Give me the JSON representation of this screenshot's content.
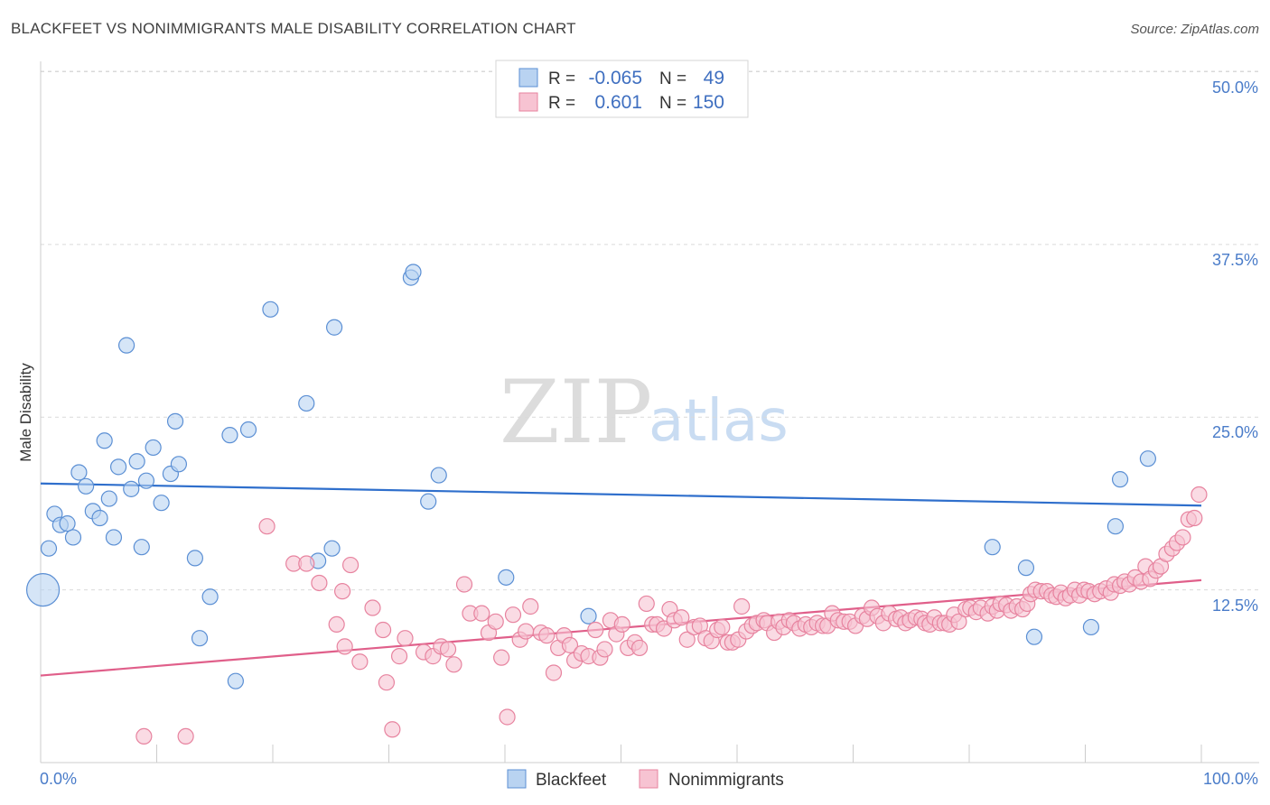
{
  "title": "BLACKFEET VS NONIMMIGRANTS MALE DISABILITY CORRELATION CHART",
  "source": "Source: ZipAtlas.com",
  "watermark": {
    "part1": "ZIP",
    "part2": "atlas"
  },
  "colors": {
    "blackfeet_fill": "#b9d3f1",
    "blackfeet_stroke": "#5b8fd4",
    "blackfeet_line": "#2f6fcc",
    "nonimm_fill": "#f7c3d2",
    "nonimm_stroke": "#e7839f",
    "nonimm_line": "#e05f8a",
    "grid": "#d9d9d9",
    "tick_text": "#4a7cc9"
  },
  "legend": {
    "rows": [
      {
        "r_label": "R =",
        "r_value": "-0.065",
        "n_label": "N =",
        "n_value": "49"
      },
      {
        "r_label": "R =",
        "r_value": "0.601",
        "n_label": "N =",
        "n_value": "150"
      }
    ]
  },
  "bottom_legend": [
    "Blackfeet",
    "Nonimmigrants"
  ],
  "chart_data": {
    "type": "scatter",
    "ylabel": "Male Disability",
    "x_tick_labels": [
      "0.0%",
      "100.0%"
    ],
    "y_tick_labels": [
      "12.5%",
      "25.0%",
      "37.5%",
      "50.0%"
    ],
    "xlim": [
      0,
      100
    ],
    "ylim": [
      0,
      51.6
    ],
    "y_ticks": [
      12.5,
      25.0,
      37.5,
      50.0
    ],
    "grid": true,
    "series": [
      {
        "name": "Blackfeet",
        "trend": {
          "x": [
            0,
            100
          ],
          "y": [
            20.2,
            18.6
          ]
        },
        "points": [
          [
            0.2,
            12.5
          ],
          [
            0.7,
            15.5
          ],
          [
            1.2,
            18.0
          ],
          [
            1.7,
            17.2
          ],
          [
            2.3,
            17.3
          ],
          [
            2.8,
            16.3
          ],
          [
            3.3,
            21.0
          ],
          [
            3.9,
            20.0
          ],
          [
            4.5,
            18.2
          ],
          [
            5.1,
            17.7
          ],
          [
            5.5,
            23.3
          ],
          [
            5.9,
            19.1
          ],
          [
            6.3,
            16.3
          ],
          [
            6.7,
            21.4
          ],
          [
            7.4,
            30.2
          ],
          [
            7.8,
            19.8
          ],
          [
            8.3,
            21.8
          ],
          [
            8.7,
            15.6
          ],
          [
            9.1,
            20.4
          ],
          [
            9.7,
            22.8
          ],
          [
            10.4,
            18.8
          ],
          [
            11.2,
            20.9
          ],
          [
            11.6,
            24.7
          ],
          [
            11.9,
            21.6
          ],
          [
            13.3,
            14.8
          ],
          [
            13.7,
            9.0
          ],
          [
            14.6,
            12.0
          ],
          [
            16.3,
            23.7
          ],
          [
            16.8,
            5.9
          ],
          [
            17.9,
            24.1
          ],
          [
            19.8,
            32.8
          ],
          [
            22.9,
            26.0
          ],
          [
            23.9,
            14.6
          ],
          [
            25.1,
            15.5
          ],
          [
            25.3,
            31.5
          ],
          [
            31.9,
            35.1
          ],
          [
            32.1,
            35.5
          ],
          [
            33.4,
            18.9
          ],
          [
            34.3,
            20.8
          ],
          [
            40.1,
            13.4
          ],
          [
            47.2,
            10.6
          ],
          [
            82.0,
            15.6
          ],
          [
            84.9,
            14.1
          ],
          [
            85.6,
            9.1
          ],
          [
            90.5,
            9.8
          ],
          [
            92.6,
            17.1
          ],
          [
            93.0,
            20.5
          ],
          [
            95.4,
            22.0
          ],
          [
            49.8,
            50.1
          ]
        ]
      },
      {
        "name": "Nonimmigrants",
        "trend": {
          "x": [
            0,
            100
          ],
          "y": [
            6.3,
            13.2
          ]
        },
        "points": [
          [
            8.9,
            1.9
          ],
          [
            12.5,
            1.9
          ],
          [
            19.5,
            17.1
          ],
          [
            21.8,
            14.4
          ],
          [
            22.9,
            14.4
          ],
          [
            24.0,
            13.0
          ],
          [
            25.5,
            10.0
          ],
          [
            26.2,
            8.4
          ],
          [
            26.0,
            12.4
          ],
          [
            26.7,
            14.3
          ],
          [
            27.5,
            7.3
          ],
          [
            28.6,
            11.2
          ],
          [
            29.5,
            9.6
          ],
          [
            29.8,
            5.8
          ],
          [
            30.3,
            2.4
          ],
          [
            30.9,
            7.7
          ],
          [
            31.4,
            9.0
          ],
          [
            33.0,
            8.0
          ],
          [
            33.8,
            7.7
          ],
          [
            34.5,
            8.4
          ],
          [
            35.1,
            8.2
          ],
          [
            35.6,
            7.1
          ],
          [
            36.5,
            12.9
          ],
          [
            37.0,
            10.8
          ],
          [
            38.0,
            10.8
          ],
          [
            38.6,
            9.4
          ],
          [
            39.2,
            10.2
          ],
          [
            39.7,
            7.6
          ],
          [
            40.2,
            3.3
          ],
          [
            40.7,
            10.7
          ],
          [
            41.3,
            8.9
          ],
          [
            41.8,
            9.5
          ],
          [
            42.2,
            11.3
          ],
          [
            43.1,
            9.4
          ],
          [
            43.6,
            9.2
          ],
          [
            44.2,
            6.5
          ],
          [
            44.6,
            8.3
          ],
          [
            45.1,
            9.2
          ],
          [
            45.6,
            8.5
          ],
          [
            46.0,
            7.4
          ],
          [
            46.6,
            7.9
          ],
          [
            47.2,
            7.7
          ],
          [
            47.8,
            9.6
          ],
          [
            48.2,
            7.6
          ],
          [
            48.6,
            8.2
          ],
          [
            49.1,
            10.3
          ],
          [
            49.6,
            9.3
          ],
          [
            50.1,
            10.0
          ],
          [
            50.6,
            8.3
          ],
          [
            51.2,
            8.7
          ],
          [
            51.6,
            8.3
          ],
          [
            52.2,
            11.5
          ],
          [
            52.7,
            10.0
          ],
          [
            53.1,
            10.0
          ],
          [
            53.7,
            9.7
          ],
          [
            54.2,
            11.1
          ],
          [
            54.6,
            10.3
          ],
          [
            55.2,
            10.5
          ],
          [
            55.7,
            8.9
          ],
          [
            56.3,
            9.8
          ],
          [
            56.8,
            9.9
          ],
          [
            57.3,
            9.0
          ],
          [
            57.8,
            8.8
          ],
          [
            58.3,
            9.6
          ],
          [
            58.7,
            9.8
          ],
          [
            59.2,
            8.7
          ],
          [
            59.6,
            8.7
          ],
          [
            60.1,
            8.9
          ],
          [
            60.4,
            11.3
          ],
          [
            60.8,
            9.5
          ],
          [
            61.3,
            9.9
          ],
          [
            61.7,
            10.1
          ],
          [
            62.3,
            10.3
          ],
          [
            62.6,
            10.1
          ],
          [
            63.2,
            9.4
          ],
          [
            63.6,
            10.2
          ],
          [
            64.0,
            9.8
          ],
          [
            64.5,
            10.3
          ],
          [
            64.9,
            10.1
          ],
          [
            65.4,
            9.7
          ],
          [
            65.9,
            10.0
          ],
          [
            66.4,
            9.8
          ],
          [
            66.9,
            10.1
          ],
          [
            67.4,
            9.9
          ],
          [
            67.8,
            9.9
          ],
          [
            68.2,
            10.8
          ],
          [
            68.7,
            10.3
          ],
          [
            69.2,
            10.2
          ],
          [
            69.7,
            10.2
          ],
          [
            70.2,
            9.9
          ],
          [
            70.8,
            10.6
          ],
          [
            71.2,
            10.4
          ],
          [
            71.6,
            11.2
          ],
          [
            72.1,
            10.6
          ],
          [
            72.6,
            10.1
          ],
          [
            73.1,
            10.8
          ],
          [
            73.7,
            10.4
          ],
          [
            74.1,
            10.5
          ],
          [
            74.5,
            10.1
          ],
          [
            74.9,
            10.3
          ],
          [
            75.4,
            10.5
          ],
          [
            75.9,
            10.4
          ],
          [
            76.2,
            10.1
          ],
          [
            76.6,
            10.0
          ],
          [
            77.0,
            10.5
          ],
          [
            77.5,
            10.1
          ],
          [
            77.9,
            10.1
          ],
          [
            78.3,
            10.0
          ],
          [
            78.7,
            10.7
          ],
          [
            79.1,
            10.2
          ],
          [
            79.7,
            11.1
          ],
          [
            80.1,
            11.2
          ],
          [
            80.6,
            10.9
          ],
          [
            81.0,
            11.2
          ],
          [
            81.6,
            10.8
          ],
          [
            82.0,
            11.3
          ],
          [
            82.4,
            11.0
          ],
          [
            82.7,
            11.5
          ],
          [
            83.2,
            11.4
          ],
          [
            83.6,
            11.0
          ],
          [
            84.1,
            11.3
          ],
          [
            84.6,
            11.1
          ],
          [
            85.0,
            11.5
          ],
          [
            85.3,
            12.2
          ],
          [
            85.7,
            12.5
          ],
          [
            86.2,
            12.4
          ],
          [
            86.7,
            12.4
          ],
          [
            87.1,
            12.1
          ],
          [
            87.5,
            12.0
          ],
          [
            87.9,
            12.3
          ],
          [
            88.3,
            11.9
          ],
          [
            88.7,
            12.1
          ],
          [
            89.1,
            12.5
          ],
          [
            89.5,
            12.1
          ],
          [
            89.9,
            12.5
          ],
          [
            90.3,
            12.4
          ],
          [
            90.8,
            12.2
          ],
          [
            91.3,
            12.4
          ],
          [
            91.8,
            12.6
          ],
          [
            92.2,
            12.3
          ],
          [
            92.5,
            12.9
          ],
          [
            93.0,
            12.8
          ],
          [
            93.4,
            13.1
          ],
          [
            93.8,
            12.9
          ],
          [
            94.3,
            13.4
          ],
          [
            94.8,
            13.1
          ],
          [
            95.2,
            14.2
          ],
          [
            95.6,
            13.3
          ],
          [
            96.1,
            13.9
          ],
          [
            96.5,
            14.2
          ],
          [
            97.0,
            15.1
          ],
          [
            97.5,
            15.5
          ],
          [
            97.9,
            15.9
          ],
          [
            98.4,
            16.3
          ],
          [
            98.9,
            17.6
          ],
          [
            99.4,
            17.7
          ],
          [
            99.8,
            19.4
          ]
        ]
      }
    ]
  }
}
